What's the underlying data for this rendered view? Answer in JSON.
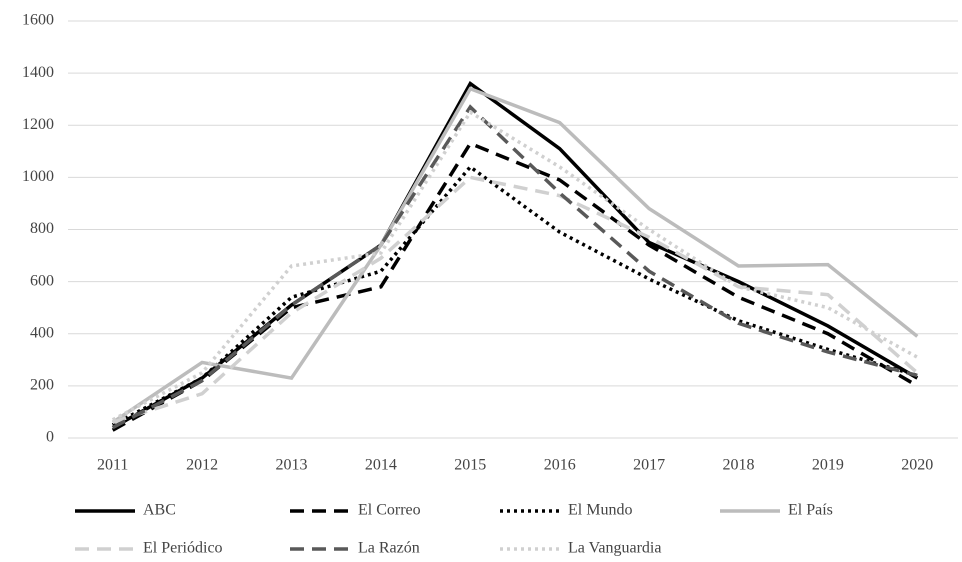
{
  "chart_data": {
    "type": "line",
    "categories": [
      "2011",
      "2012",
      "2013",
      "2014",
      "2015",
      "2016",
      "2017",
      "2018",
      "2019",
      "2020"
    ],
    "ylim": [
      0,
      1600
    ],
    "yticks": [
      0,
      200,
      400,
      600,
      800,
      1000,
      1200,
      1400,
      1600
    ],
    "grid": true,
    "legend": "bottom",
    "series": [
      {
        "name": "ABC",
        "color": "#000000",
        "dash": "solid",
        "values": [
          40,
          230,
          510,
          740,
          1360,
          1110,
          750,
          600,
          430,
          230
        ]
      },
      {
        "name": "El Correo",
        "color": "#000000",
        "dash": "dash",
        "values": [
          30,
          220,
          500,
          580,
          1130,
          990,
          740,
          540,
          400,
          200
        ]
      },
      {
        "name": "El Mundo",
        "color": "#000000",
        "dash": "dot",
        "values": [
          50,
          230,
          540,
          640,
          1040,
          790,
          610,
          450,
          340,
          240
        ]
      },
      {
        "name": "El País",
        "color": "#bcbcbc",
        "dash": "solid",
        "values": [
          60,
          290,
          230,
          740,
          1340,
          1210,
          880,
          660,
          665,
          390
        ]
      },
      {
        "name": "El Periódico",
        "color": "#d0d0d0",
        "dash": "dash",
        "values": [
          60,
          170,
          480,
          690,
          1000,
          930,
          770,
          580,
          550,
          250
        ]
      },
      {
        "name": "La Razón",
        "color": "#595959",
        "dash": "dash",
        "values": [
          40,
          220,
          510,
          740,
          1270,
          940,
          640,
          440,
          330,
          240
        ]
      },
      {
        "name": "La Vanguardia",
        "color": "#d0d0d0",
        "dash": "dot",
        "values": [
          70,
          250,
          660,
          710,
          1250,
          1040,
          800,
          580,
          500,
          310
        ]
      }
    ]
  }
}
